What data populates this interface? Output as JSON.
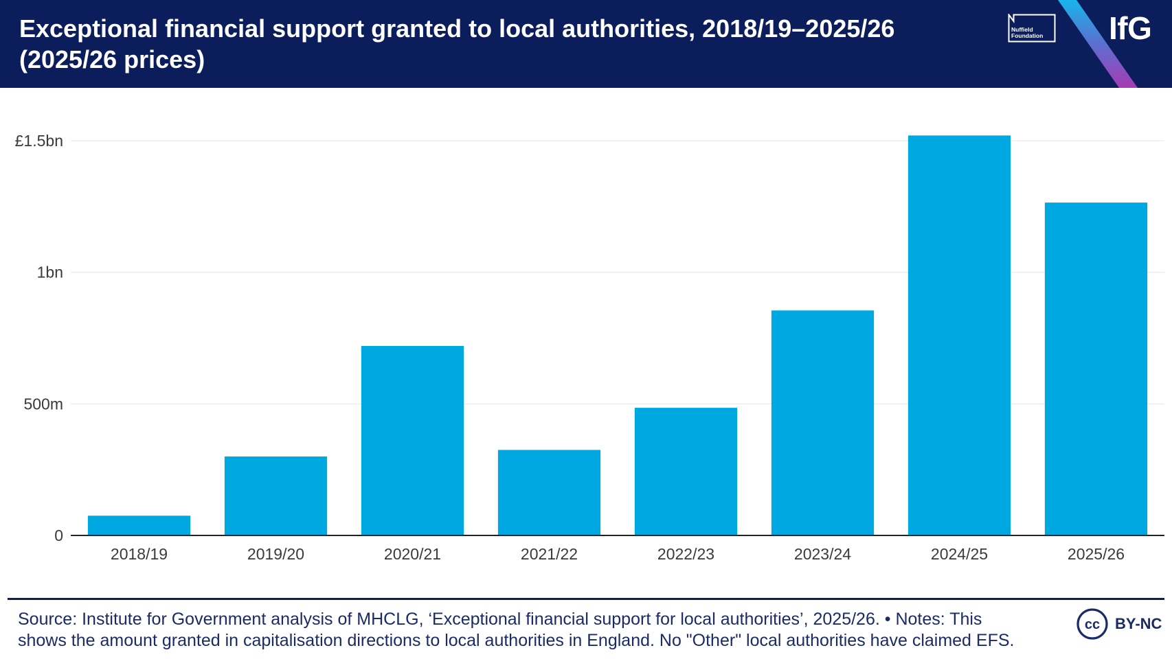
{
  "chart_data": {
    "type": "bar",
    "title": "Exceptional financial support granted to local authorities, 2018/19–2025/26 (2025/26 prices)",
    "categories": [
      "2018/19",
      "2019/20",
      "2020/21",
      "2021/22",
      "2022/23",
      "2023/24",
      "2024/25",
      "2025/26"
    ],
    "values": [
      75,
      300,
      720,
      325,
      485,
      855,
      1520,
      1265
    ],
    "y_ticks": [
      0,
      500,
      1000,
      1500
    ],
    "y_tick_labels": [
      "0",
      "500m",
      "1bn",
      "£1.5bn"
    ],
    "xlabel": "",
    "ylabel": "",
    "ylim": [
      0,
      1600
    ],
    "grid": true,
    "bar_color": "#00a8e1"
  },
  "logos": {
    "nuffield": {
      "line1": "Nuffield",
      "line2": "Foundation"
    },
    "ifg": "IfG"
  },
  "footer": {
    "source_lines": [
      "Source: Institute for Government analysis of MHCLG, ‘Exceptional financial support for local authorities’, 2025/26. • Notes: This",
      "shows the amount granted in capitalisation directions to local authorities in England. No \"Other\" local authorities have claimed EFS."
    ],
    "license": {
      "icon": "cc-icon",
      "icon_text": "cc",
      "label": "BY-NC"
    }
  },
  "colors": {
    "header_bg": "#0b1e5b",
    "text_navy": "#1a2b66",
    "axis_text": "#3a3a3a",
    "gridline": "#e6e6e6",
    "axis_line": "#222222",
    "stripe_top": "#18b5ea",
    "stripe_mid": "#5b6fd0",
    "stripe_bottom": "#a73ab4"
  }
}
